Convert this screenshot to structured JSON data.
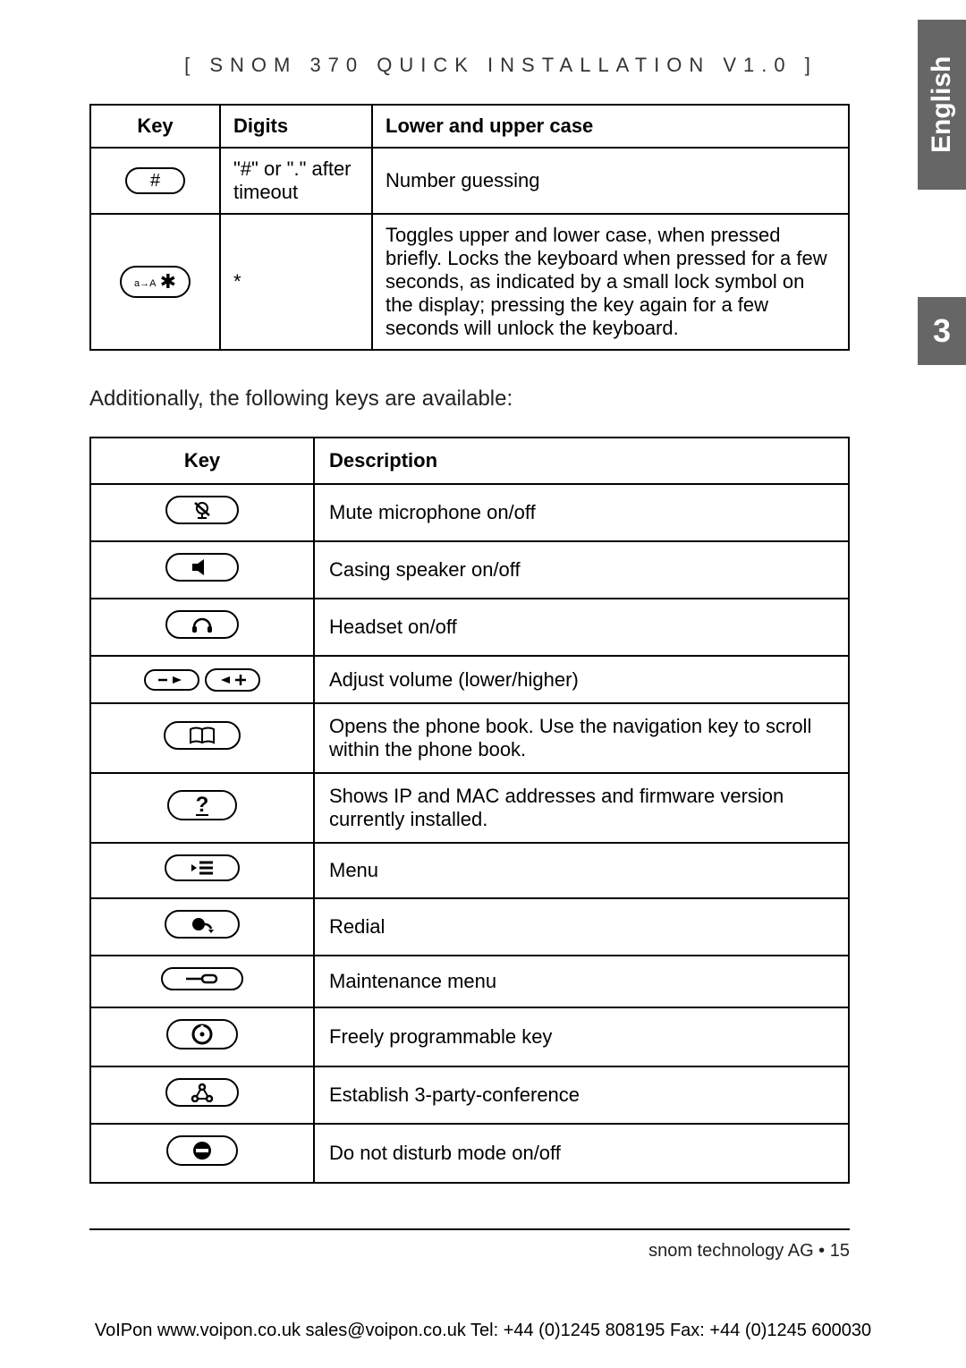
{
  "header": {
    "title": "[ SNOM 370 QUICK INSTALLATION V1.0 ]"
  },
  "side": {
    "lang": "English",
    "section": "3"
  },
  "table1": {
    "headers": {
      "key": "Key",
      "digits": "Digits",
      "case": "Lower and upper case"
    },
    "rows": [
      {
        "key_label": "#",
        "digits": "\"#\" or \".\" after timeout",
        "case": "Number guessing"
      },
      {
        "key_label": "a→A ✱",
        "digits": "*",
        "case": "Toggles upper and lower case, when pressed briefly. Locks the keyboard when pressed for a few seconds, as indicated by a small lock symbol on the display; pressing the key again for a few seconds will unlock the keyboard."
      }
    ]
  },
  "intro": "Additionally, the following keys are available:",
  "table2": {
    "headers": {
      "key": "Key",
      "desc": "Description"
    },
    "rows": [
      {
        "icon": "mute",
        "desc": "Mute microphone on/off"
      },
      {
        "icon": "speaker",
        "desc": "Casing speaker on/off"
      },
      {
        "icon": "headset",
        "desc": "Headset on/off"
      },
      {
        "icon": "volume",
        "desc": "Adjust volume (lower/higher)"
      },
      {
        "icon": "book",
        "desc": "Opens the phone book. Use the navigation key to scroll within the phone book."
      },
      {
        "icon": "help",
        "desc": "Shows IP and MAC addresses and firmware version currently installed."
      },
      {
        "icon": "menu",
        "desc": "Menu"
      },
      {
        "icon": "redial",
        "desc": "Redial"
      },
      {
        "icon": "maint",
        "desc": "Maintenance menu"
      },
      {
        "icon": "prog",
        "desc": "Freely programmable key"
      },
      {
        "icon": "conf",
        "desc": "Establish 3-party-conference"
      },
      {
        "icon": "dnd",
        "desc": "Do not disturb mode on/off"
      }
    ]
  },
  "footer": {
    "company": "snom technology AG  •  15"
  },
  "bottom": "VoIPon   www.voipon.co.uk   sales@voipon.co.uk   Tel: +44 (0)1245 808195   Fax: +44 (0)1245 600030",
  "icons": {
    "mute": "<svg width='26' height='22' viewBox='0 0 26 22'><circle cx='13' cy='9' r='6' fill='none' stroke='#000' stroke-width='2'/><line x1='13' y1='15' x2='13' y2='20' stroke='#000' stroke-width='2'/><line x1='8' y1='20' x2='18' y2='20' stroke='#000' stroke-width='2'/><line x1='5' y1='3' x2='21' y2='17' stroke='#000' stroke-width='2.5'/></svg>",
    "speaker": "<svg width='26' height='22' viewBox='0 0 26 22'><polygon points='2,7 8,7 15,2 15,20 8,15 2,15' fill='#000'/></svg>",
    "headset": "<svg width='26' height='22' viewBox='0 0 26 22'><path d='M4 14 A9 9 0 0 1 22 14' fill='none' stroke='#000' stroke-width='2.5'/><rect x='2' y='13' width='5' height='7' rx='2' fill='#000'/><rect x='19' y='13' width='5' height='7' rx='2' fill='#000'/></svg>",
    "book": "<svg width='30' height='22' viewBox='0 0 30 22'><path d='M2 4 Q8 1 15 4 Q22 1 28 4 L28 19 Q22 16 15 19 Q8 16 2 19 Z' fill='none' stroke='#000' stroke-width='2'/><line x1='15' y1='4' x2='15' y2='19' stroke='#000' stroke-width='2'/></svg>",
    "help": "<svg width='22' height='24' viewBox='0 0 22 24'><text x='11' y='19' text-anchor='middle' font-size='24' font-weight='bold' font-family='sans-serif'>?</text><line x1='4' y1='23' x2='18' y2='23' stroke='#000' stroke-width='2'/></svg>",
    "menu": "<svg width='28' height='20' viewBox='0 0 28 20'><polygon points='2,6 8,10 2,14' fill='#000'/><line x1='11' y1='4' x2='26' y2='4' stroke='#000' stroke-width='3'/><line x1='11' y1='10' x2='26' y2='10' stroke='#000' stroke-width='3'/><line x1='11' y1='16' x2='26' y2='16' stroke='#000' stroke-width='3'/></svg>",
    "redial": "<svg width='28' height='22' viewBox='0 0 28 22'><circle cx='10' cy='11' r='7' fill='#000'/><path d='M17 11 A7 7 0 0 1 24 16' fill='none' stroke='#000' stroke-width='2.5'/><polygon points='21,17 27,17 24,21' fill='#000'/></svg>",
    "maint": "<svg width='36' height='16' viewBox='0 0 36 16'><line x1='0' y1='8' x2='18' y2='8' stroke='#000' stroke-width='2.5'/><rect x='18' y='4' width='16' height='8' rx='4' fill='none' stroke='#000' stroke-width='2.5'/></svg>",
    "prog": "<svg width='24' height='24' viewBox='0 0 24 24'><circle cx='12' cy='12' r='10' fill='none' stroke='#000' stroke-width='3'/><circle cx='12' cy='12' r='2.5' fill='#000'/><line x1='12' y1='2' x2='12' y2='7' stroke='#fff' stroke-width='3'/></svg>",
    "conf": "<svg width='26' height='22' viewBox='0 0 26 22'><circle cx='13' cy='5' r='3' fill='none' stroke='#000' stroke-width='2.5'/><circle cx='5' cy='18' r='3' fill='none' stroke='#000' stroke-width='2.5'/><circle cx='21' cy='18' r='3' fill='none' stroke='#000' stroke-width='2.5'/><line x1='11' y1='8' x2='7' y2='15' stroke='#000' stroke-width='2'/><line x1='15' y1='8' x2='19' y2='15' stroke='#000' stroke-width='2'/><line x1='8' y1='18' x2='18' y2='18' stroke='#000' stroke-width='2'/></svg>",
    "dnd": "<svg width='24' height='24' viewBox='0 0 24 24'><circle cx='12' cy='12' r='10' fill='#000'/><rect x='5' y='10' width='14' height='4' fill='#fff'/></svg>",
    "vol_minus": "<svg width='34' height='12' viewBox='0 0 34 12'><line x1='2' y1='6' x2='12' y2='6' stroke='#000' stroke-width='2.5'/><polygon points='18,2 28,6 18,10' fill='#000'/></svg>",
    "vol_plus": "<svg width='34' height='14' viewBox='0 0 34 14'><polygon points='4,7 14,3 14,11' fill='#000'/><line x1='20' y1='7' x2='32' y2='7' stroke='#000' stroke-width='2.5'/><line x1='26' y1='1' x2='26' y2='13' stroke='#000' stroke-width='2.5'/></svg>"
  }
}
